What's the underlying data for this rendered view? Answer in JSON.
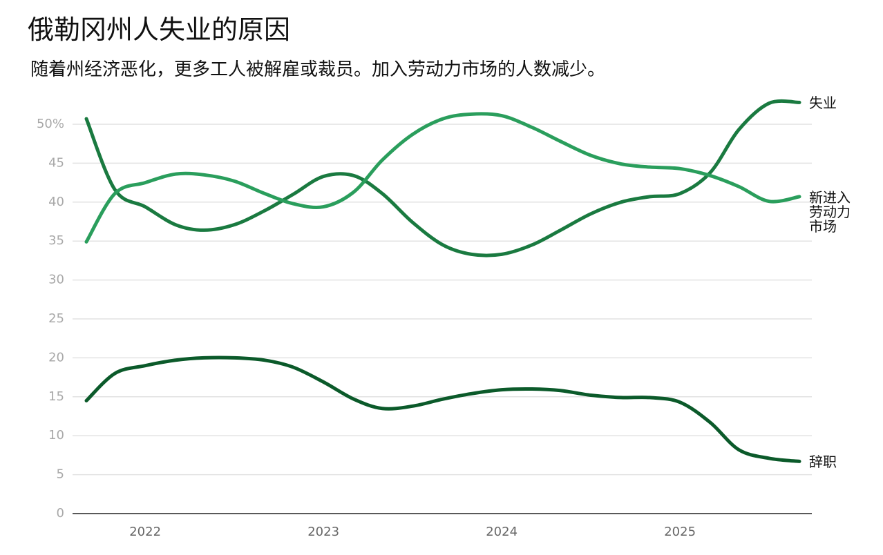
{
  "chart_data": {
    "type": "line",
    "title": "俄勒冈州人失业的原因",
    "subtitle": "随着州经济恶化，更多工人被解雇或裁员。加入劳动力市场的人数减少。",
    "x": [
      2021.67,
      2021.83,
      2022.0,
      2022.17,
      2022.33,
      2022.5,
      2022.67,
      2022.83,
      2023.0,
      2023.17,
      2023.33,
      2023.5,
      2023.67,
      2023.83,
      2024.0,
      2024.17,
      2024.33,
      2024.5,
      2024.67,
      2024.83,
      2025.0,
      2025.17,
      2025.33,
      2025.5,
      2025.67
    ],
    "xlim": [
      2021.59,
      2025.74
    ],
    "xticks": [
      2022,
      2023,
      2024,
      2025
    ],
    "ylim": [
      0,
      55
    ],
    "yticks": [
      0,
      5,
      10,
      15,
      20,
      25,
      30,
      35,
      40,
      45,
      {
        "value": 50,
        "label": "50%"
      }
    ],
    "grid": true,
    "series": [
      {
        "name": "失业",
        "color": "#1a7a40",
        "values": [
          50.7,
          41.6,
          39.4,
          37.1,
          36.4,
          37.1,
          38.9,
          41.0,
          43.3,
          43.4,
          41.1,
          37.4,
          34.5,
          33.3,
          33.3,
          34.5,
          36.4,
          38.5,
          40.0,
          40.7,
          41.1,
          43.8,
          49.3,
          52.7,
          52.8
        ]
      },
      {
        "name": "新进入劳动力市场",
        "color": "#2a9e5c",
        "values": [
          34.9,
          41.1,
          42.5,
          43.6,
          43.5,
          42.7,
          41.1,
          39.8,
          39.4,
          41.3,
          45.4,
          48.7,
          50.7,
          51.3,
          51.1,
          49.6,
          47.8,
          46.0,
          44.9,
          44.5,
          44.3,
          43.4,
          42.0,
          40.1,
          40.7
        ]
      },
      {
        "name": "辞职",
        "color": "#0b5a2a",
        "values": [
          14.5,
          18.0,
          19.0,
          19.7,
          20.0,
          20.0,
          19.7,
          18.8,
          16.9,
          14.7,
          13.5,
          13.8,
          14.7,
          15.4,
          15.9,
          16.0,
          15.8,
          15.2,
          14.9,
          14.9,
          14.3,
          11.7,
          8.2,
          7.1,
          6.7
        ]
      }
    ]
  }
}
